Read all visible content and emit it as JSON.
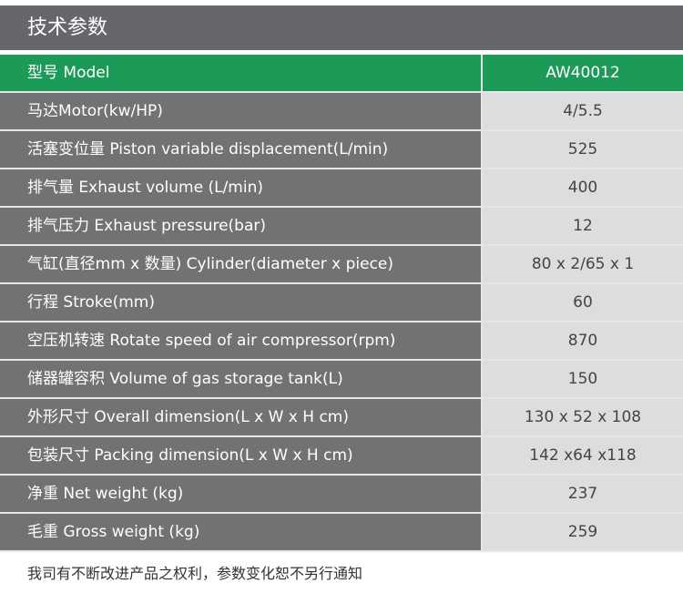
{
  "title": "技术参数",
  "colors": {
    "header": "#67666b",
    "accent": "#1c9a58",
    "label_bg": "#727272",
    "value_bg": "#dcdddc"
  },
  "model": {
    "label": "型号 Model",
    "value": "AW40012"
  },
  "rows": [
    {
      "label": "马达Motor(kw/HP)",
      "value": "4/5.5"
    },
    {
      "label": "活塞变位量 Piston variable displacement(L/min)",
      "value": "525"
    },
    {
      "label": "排气量 Exhaust volume (L/min)",
      "value": "400"
    },
    {
      "label": "排气压力 Exhaust pressure(bar)",
      "value": "12"
    },
    {
      "label": "气缸(直径mm x 数量) Cylinder(diameter x piece)",
      "value": "80 x 2/65 x 1"
    },
    {
      "label": "行程 Stroke(mm)",
      "value": "60"
    },
    {
      "label": "空压机转速 Rotate speed of air compressor(rpm)",
      "value": "870"
    },
    {
      "label": "储器罐容积 Volume of gas storage tank(L)",
      "value": "150"
    },
    {
      "label": "外形尺寸 Overall dimension(L x W x H cm)",
      "value": "130 x 52 x 108"
    },
    {
      "label": "包装尺寸 Packing dimension(L x W x H cm)",
      "value": "142 x64 x118"
    },
    {
      "label": "净重 Net weight (kg)",
      "value": "237"
    },
    {
      "label": "毛重 Gross weight (kg)",
      "value": "259"
    }
  ],
  "note": "我司有不断改进产品之权利，参数变化恕不另行通知"
}
